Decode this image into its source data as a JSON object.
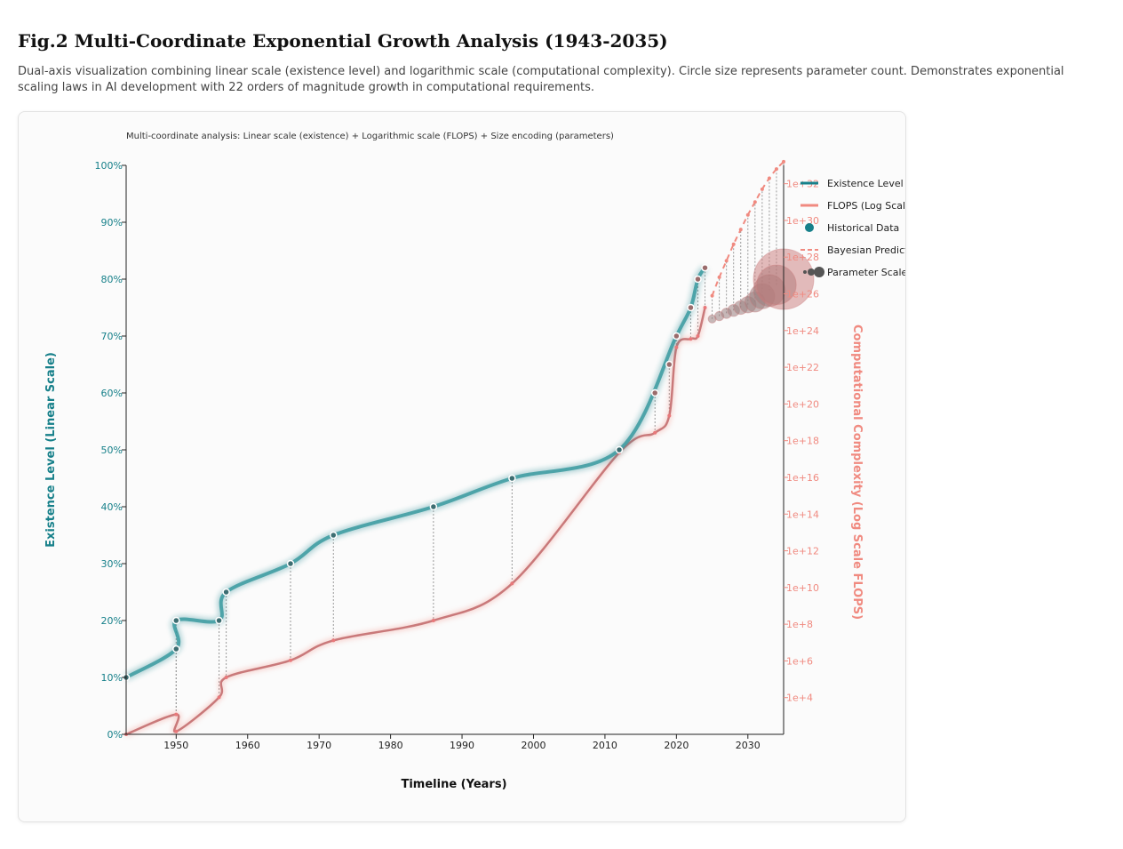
{
  "figure": {
    "title": "Fig.2 Multi-Coordinate Exponential Growth Analysis (1943-2035)",
    "description": "Dual-axis visualization combining linear scale (existence level) and logarithmic scale (computational complexity). Circle size represents parameter count. Demonstrates exponential scaling laws in AI development with 22 orders of magnitude growth in computational requirements."
  },
  "colors": {
    "existence": "#17808a",
    "flops": "#f08a80",
    "axis": "#222222",
    "guide": "#999999"
  },
  "chart_data": {
    "type": "line",
    "subtitle": "Multi-coordinate analysis: Linear scale (existence) + Logarithmic scale (FLOPS) + Size encoding (parameters)",
    "xlabel": "Timeline (Years)",
    "ylabel_left": "Existence Level (Linear Scale)",
    "ylabel_right": "Computational Complexity (Log Scale FLOPS)",
    "xlim": [
      1943,
      2035
    ],
    "x_ticks": [
      1950,
      1960,
      1970,
      1980,
      1990,
      2000,
      2010,
      2020,
      2030
    ],
    "ylim_left": [
      0,
      100
    ],
    "y_left_ticks": [
      "0%",
      "10%",
      "20%",
      "30%",
      "40%",
      "50%",
      "60%",
      "70%",
      "80%",
      "90%",
      "100%"
    ],
    "y_left_values": [
      0,
      10,
      20,
      30,
      40,
      50,
      60,
      70,
      80,
      90,
      100
    ],
    "ylim_right_log10": [
      2,
      33
    ],
    "y_right_ticks": [
      "1e+4",
      "1e+6",
      "1e+8",
      "1e+10",
      "1e+12",
      "1e+14",
      "1e+16",
      "1e+18",
      "1e+20",
      "1e+22",
      "1e+24",
      "1e+26",
      "1e+28",
      "1e+30",
      "1e+32"
    ],
    "y_right_values": [
      4,
      6,
      8,
      10,
      12,
      14,
      16,
      18,
      20,
      22,
      24,
      26,
      28,
      30,
      32
    ],
    "legend": {
      "position": "right",
      "items": [
        "Existence Level",
        "FLOPS (Log Scale)",
        "Historical Data",
        "Bayesian Prediction",
        "Parameter Scale"
      ]
    },
    "series": [
      {
        "name": "Existence Level",
        "axis": "left",
        "x": [
          1943,
          1950,
          1950,
          1956,
          1957,
          1966,
          1972,
          1986,
          1997,
          2012,
          2020,
          2022,
          2023,
          2024
        ],
        "values": [
          10,
          15,
          20,
          20,
          25,
          30,
          35,
          40,
          45,
          50,
          70,
          75,
          80,
          82
        ]
      },
      {
        "name": "FLOPS (Log Scale)",
        "axis": "left",
        "x": [
          1943,
          1950,
          1950,
          1956,
          1957,
          1966,
          1972,
          1986,
          1997,
          2012,
          2017,
          2019,
          2020,
          2022,
          2023,
          2024
        ],
        "values": [
          0,
          3.5,
          0.5,
          6.5,
          10,
          13,
          16.5,
          20,
          26.5,
          49.5,
          53,
          56,
          68,
          69.5,
          70,
          75
        ]
      },
      {
        "name": "Bayesian Prediction",
        "axis": "right_log10",
        "x": [
          2025,
          2026,
          2027,
          2028,
          2029,
          2030,
          2031,
          2032,
          2033,
          2034,
          2035
        ],
        "values": [
          25.9,
          26.9,
          27.8,
          28.7,
          29.5,
          30.3,
          31.0,
          31.7,
          32.3,
          32.8,
          33.2
        ]
      }
    ],
    "historical_points": {
      "x": [
        1943,
        1950,
        1950,
        1956,
        1957,
        1966,
        1972,
        1986,
        1997,
        2012,
        2017,
        2019,
        2020,
        2022,
        2023,
        2024
      ],
      "existence": [
        10,
        15,
        20,
        20,
        25,
        30,
        35,
        40,
        45,
        50,
        60,
        65,
        70,
        75,
        80,
        82
      ]
    },
    "parameter_scale": {
      "x": [
        2025,
        2026,
        2027,
        2028,
        2029,
        2030,
        2031,
        2032,
        2033,
        2034,
        2035
      ],
      "existence": [
        73,
        73.5,
        74,
        74.5,
        75,
        75.5,
        76,
        77,
        78,
        79,
        80
      ],
      "relative_size": [
        0.05,
        0.07,
        0.09,
        0.12,
        0.15,
        0.2,
        0.27,
        0.36,
        0.48,
        0.62,
        1.0
      ]
    }
  }
}
